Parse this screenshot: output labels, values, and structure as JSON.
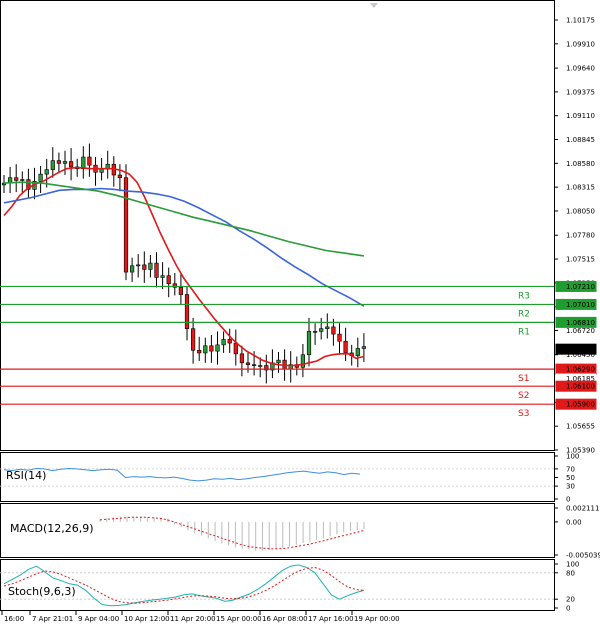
{
  "chart_data": [
    {
      "type": "candlestick",
      "pane": "price",
      "y_ticks": [
        "1.10175",
        "1.09910",
        "1.09640",
        "1.09375",
        "1.09110",
        "1.08845",
        "1.08580",
        "1.08315",
        "1.08050",
        "1.07780",
        "1.07515",
        "1.07250",
        "1.06985",
        "1.06720",
        "1.06450",
        "1.05920",
        "1.05655",
        "1.05390"
      ],
      "price_tags": [
        {
          "value": "1.07210",
          "color": "#1f9e2f"
        },
        {
          "value": "1.07010",
          "color": "#1f9e2f"
        },
        {
          "value": "1.06810",
          "color": "#1f9e2f"
        },
        {
          "value": "1.06512",
          "color": "#000000"
        },
        {
          "value": "1.06290",
          "color": "#e01919"
        },
        {
          "value": "1.06185",
          "color": "#ffffff"
        },
        {
          "value": "1.06100",
          "color": "#e01919"
        },
        {
          "value": "1.05900",
          "color": "#e01919"
        }
      ],
      "levels": [
        {
          "name": "R3",
          "price": 1.0721,
          "color": "#1f9e2f"
        },
        {
          "name": "R2",
          "price": 1.0701,
          "color": "#1f9e2f"
        },
        {
          "name": "R1",
          "price": 1.0681,
          "color": "#1f9e2f"
        },
        {
          "name": "S1",
          "price": 1.0629,
          "color": "#e01919"
        },
        {
          "name": "S2",
          "price": 1.061,
          "color": "#e01919"
        },
        {
          "name": "S3",
          "price": 1.059,
          "color": "#e01919"
        }
      ],
      "x_labels": [
        "16:00",
        "7 Apr 21:01",
        "9 Apr 04:00",
        "10 Apr 12:00",
        "11 Apr 20:00",
        "15 Apr 00:00",
        "16 Apr 08:00",
        "17 Apr 16:00",
        "19 Apr 00:00"
      ],
      "close_series": [
        1.0836,
        1.0842,
        1.0839,
        1.084,
        1.0829,
        1.0838,
        1.0846,
        1.0851,
        1.0861,
        1.0858,
        1.086,
        1.0854,
        1.0852,
        1.0865,
        1.0856,
        1.0848,
        1.0852,
        1.0857,
        1.0845,
        1.0842,
        1.0737,
        1.0744,
        1.0745,
        1.074,
        1.0747,
        1.0731,
        1.0733,
        1.0724,
        1.072,
        1.0712,
        1.0674,
        1.065,
        1.0647,
        1.0655,
        1.0649,
        1.0656,
        1.0662,
        1.0658,
        1.0646,
        1.0636,
        1.0634,
        1.0633,
        1.0633,
        1.0628,
        1.0636,
        1.0639,
        1.0629,
        1.0634,
        1.0631,
        1.0645,
        1.0671,
        1.0671,
        1.0674,
        1.0676,
        1.0668,
        1.066,
        1.0647,
        1.0644,
        1.0652,
        1.0654
      ],
      "series": [
        {
          "name": "",
          "color": "#e01919",
          "values": [
            1.08,
            1.081,
            1.0822,
            1.083,
            1.0835,
            1.0838,
            1.0843,
            1.0848,
            1.0852,
            1.0853,
            1.0853,
            1.0852,
            1.0852,
            1.0852,
            1.0852,
            1.085,
            1.0846,
            1.0837,
            1.082,
            1.08,
            1.078,
            1.0762,
            1.0745,
            1.073,
            1.0718,
            1.0706,
            1.0695,
            1.0684,
            1.0674,
            1.0664,
            1.0656,
            1.0649,
            1.0644,
            1.0639,
            1.0636,
            1.0634,
            1.0633,
            1.0633,
            1.0634,
            1.0636,
            1.0638,
            1.0643,
            1.0645,
            1.0646,
            1.0646,
            1.0641,
            1.0643
          ]
        },
        {
          "name": "",
          "color": "#3a64d8",
          "values": [
            1.0814,
            1.0817,
            1.082,
            1.0824,
            1.0828,
            1.0829,
            1.0829,
            1.083,
            1.0829,
            1.0827,
            1.0826,
            1.0824,
            1.0821,
            1.0816,
            1.0809,
            1.0801,
            1.0793,
            1.0783,
            1.0774,
            1.0764,
            1.0753,
            1.0743,
            1.0734,
            1.0724,
            1.0716,
            1.0708,
            1.0699
          ]
        },
        {
          "name": "",
          "color": "#2a9a3a",
          "values": [
            1.0836,
            1.0837,
            1.0836,
            1.0833,
            1.083,
            1.0827,
            1.0822,
            1.0816,
            1.081,
            1.0804,
            1.0798,
            1.0793,
            1.0788,
            1.0783,
            1.0777,
            1.0771,
            1.0766,
            1.0761,
            1.0758,
            1.0755
          ]
        }
      ]
    },
    {
      "type": "line",
      "pane": "rsi",
      "title": "RSI(14)",
      "y_ticks": [
        "100",
        "70",
        "50",
        "30",
        "0"
      ],
      "series": [
        {
          "name": "",
          "color": "#3d8fe0",
          "values": [
            68,
            66,
            69,
            67,
            71,
            70,
            66,
            69,
            71,
            70,
            68,
            66,
            68,
            69,
            67,
            50,
            52,
            51,
            52,
            50,
            49,
            51,
            48,
            44,
            42,
            44,
            47,
            46,
            48,
            45,
            47,
            50,
            52,
            55,
            58,
            61,
            63,
            65,
            62,
            60,
            63,
            61,
            57,
            60,
            58
          ]
        }
      ]
    },
    {
      "type": "bar",
      "pane": "macd",
      "title": "MACD(12,26,9)",
      "y_ticks": [
        "0.002111",
        "0.00",
        "-0.005039"
      ],
      "series": [
        {
          "name": "",
          "color": "#bbbbbb",
          "values": [
            0.0005,
            0.0006,
            0.0007,
            0.0008,
            0.0008,
            0.0008,
            0.0008,
            0.0007,
            0.0007,
            0.0006,
            0.0005,
            -0.0004,
            -0.0008,
            -0.0013,
            -0.0017,
            -0.0021,
            -0.0025,
            -0.0029,
            -0.0033,
            -0.0036,
            -0.0039,
            -0.0041,
            -0.0042,
            -0.0044,
            -0.0044,
            -0.0043,
            -0.0042,
            -0.004,
            -0.0037,
            -0.0035,
            -0.0032,
            -0.003,
            -0.0028,
            -0.0025,
            -0.0022,
            -0.0019,
            -0.0016,
            -0.0014,
            -0.0013,
            -0.0011
          ]
        },
        {
          "name": "",
          "color": "#e01919",
          "values": [
            0.0003,
            0.0004,
            0.0005,
            0.0006,
            0.0007,
            0.0007,
            0.0007,
            0.0006,
            0.0005,
            0.0002,
            -0.0002,
            -0.0006,
            -0.001,
            -0.0014,
            -0.0018,
            -0.0022,
            -0.0026,
            -0.003,
            -0.0034,
            -0.0037,
            -0.0039,
            -0.004,
            -0.0041,
            -0.0041,
            -0.004,
            -0.0038,
            -0.0036,
            -0.0034,
            -0.0031,
            -0.0028,
            -0.0025,
            -0.0022,
            -0.0019,
            -0.0016,
            -0.0013
          ]
        }
      ]
    },
    {
      "type": "line",
      "pane": "stoch",
      "title": "Stoch(9,6,3)",
      "y_ticks": [
        "100",
        "80",
        "20",
        "0"
      ],
      "series": [
        {
          "name": "",
          "color": "#1fb3b0",
          "values": [
            55,
            65,
            75,
            88,
            95,
            82,
            68,
            62,
            55,
            52,
            40,
            22,
            8,
            5,
            6,
            8,
            12,
            15,
            18,
            20,
            22,
            25,
            30,
            32,
            28,
            25,
            22,
            15,
            18,
            25,
            32,
            42,
            55,
            70,
            85,
            95,
            98,
            92,
            80,
            55,
            30,
            20,
            28,
            35,
            40
          ]
        },
        {
          "name": "",
          "color": "#e01919",
          "values": [
            50,
            55,
            62,
            70,
            78,
            84,
            82,
            76,
            68,
            60,
            52,
            42,
            32,
            22,
            15,
            12,
            11,
            12,
            14,
            16,
            18,
            21,
            24,
            27,
            28,
            27,
            25,
            22,
            21,
            22,
            26,
            32,
            40,
            50,
            62,
            74,
            84,
            90,
            92,
            86,
            74,
            60,
            48,
            42,
            40
          ]
        }
      ]
    }
  ]
}
